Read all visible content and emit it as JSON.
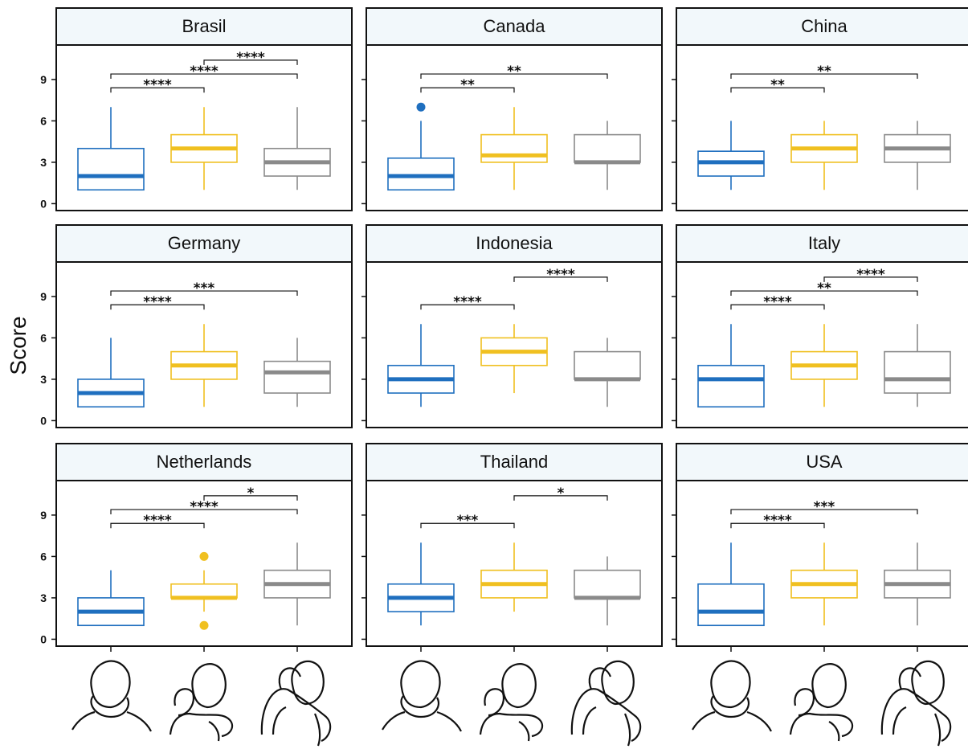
{
  "chart_data": {
    "type": "boxplot",
    "ylabel": "Score",
    "y_ticks": [
      "0",
      "3",
      "6",
      "9"
    ],
    "ylim": [
      -0.5,
      11.5
    ],
    "groups": [
      "alone",
      "hug-from-front",
      "hug-from-behind"
    ],
    "group_icons": [
      "person-alone-icon",
      "person-hugged-icon",
      "person-hugging-icon"
    ],
    "colors": [
      "#1f6fbf",
      "#f0c020",
      "#8a8a8a"
    ],
    "panels": [
      {
        "title": "Brasil",
        "boxes": [
          {
            "min": 1,
            "q1": 1,
            "median": 2,
            "q3": 4,
            "max": 7,
            "outliers": []
          },
          {
            "min": 1,
            "q1": 3,
            "median": 4,
            "q3": 5,
            "max": 7,
            "outliers": []
          },
          {
            "min": 1,
            "q1": 2,
            "median": 3,
            "q3": 4,
            "max": 7,
            "outliers": []
          }
        ],
        "sig": [
          {
            "from": 0,
            "to": 1,
            "y": 8.4,
            "label": "****"
          },
          {
            "from": 0,
            "to": 2,
            "y": 9.4,
            "label": "****"
          },
          {
            "from": 1,
            "to": 2,
            "y": 10.4,
            "label": "****"
          }
        ]
      },
      {
        "title": "Canada",
        "boxes": [
          {
            "min": 1,
            "q1": 1,
            "median": 2,
            "q3": 3.3,
            "max": 6,
            "outliers": [
              7
            ]
          },
          {
            "min": 1,
            "q1": 3,
            "median": 3.5,
            "q3": 5,
            "max": 7,
            "outliers": []
          },
          {
            "min": 1,
            "q1": 3,
            "median": 3,
            "q3": 5,
            "max": 6,
            "outliers": []
          }
        ],
        "sig": [
          {
            "from": 0,
            "to": 1,
            "y": 8.4,
            "label": "**"
          },
          {
            "from": 0,
            "to": 2,
            "y": 9.4,
            "label": "**"
          }
        ]
      },
      {
        "title": "China",
        "boxes": [
          {
            "min": 1,
            "q1": 2,
            "median": 3,
            "q3": 3.8,
            "max": 6,
            "outliers": []
          },
          {
            "min": 1,
            "q1": 3,
            "median": 4,
            "q3": 5,
            "max": 6,
            "outliers": []
          },
          {
            "min": 1,
            "q1": 3,
            "median": 4,
            "q3": 5,
            "max": 6,
            "outliers": []
          }
        ],
        "sig": [
          {
            "from": 0,
            "to": 1,
            "y": 8.4,
            "label": "**"
          },
          {
            "from": 0,
            "to": 2,
            "y": 9.4,
            "label": "**"
          }
        ]
      },
      {
        "title": "Germany",
        "boxes": [
          {
            "min": 1,
            "q1": 1,
            "median": 2,
            "q3": 3,
            "max": 6,
            "outliers": []
          },
          {
            "min": 1,
            "q1": 3,
            "median": 4,
            "q3": 5,
            "max": 7,
            "outliers": []
          },
          {
            "min": 1,
            "q1": 2,
            "median": 3.5,
            "q3": 4.3,
            "max": 6,
            "outliers": []
          }
        ],
        "sig": [
          {
            "from": 0,
            "to": 1,
            "y": 8.4,
            "label": "****"
          },
          {
            "from": 0,
            "to": 2,
            "y": 9.4,
            "label": "***"
          }
        ]
      },
      {
        "title": "Indonesia",
        "boxes": [
          {
            "min": 1,
            "q1": 2,
            "median": 3,
            "q3": 4,
            "max": 7,
            "outliers": []
          },
          {
            "min": 2,
            "q1": 4,
            "median": 5,
            "q3": 6,
            "max": 7,
            "outliers": []
          },
          {
            "min": 1,
            "q1": 3,
            "median": 3,
            "q3": 5,
            "max": 6,
            "outliers": []
          }
        ],
        "sig": [
          {
            "from": 0,
            "to": 1,
            "y": 8.4,
            "label": "****"
          },
          {
            "from": 1,
            "to": 2,
            "y": 10.4,
            "label": "****"
          }
        ]
      },
      {
        "title": "Italy",
        "boxes": [
          {
            "min": 1,
            "q1": 1,
            "median": 3,
            "q3": 4,
            "max": 7,
            "outliers": []
          },
          {
            "min": 1,
            "q1": 3,
            "median": 4,
            "q3": 5,
            "max": 7,
            "outliers": []
          },
          {
            "min": 1,
            "q1": 2,
            "median": 3,
            "q3": 5,
            "max": 7,
            "outliers": []
          }
        ],
        "sig": [
          {
            "from": 0,
            "to": 1,
            "y": 8.4,
            "label": "****"
          },
          {
            "from": 0,
            "to": 2,
            "y": 9.4,
            "label": "**"
          },
          {
            "from": 1,
            "to": 2,
            "y": 10.4,
            "label": "****"
          }
        ]
      },
      {
        "title": "Netherlands",
        "boxes": [
          {
            "min": 1,
            "q1": 1,
            "median": 2,
            "q3": 3,
            "max": 5,
            "outliers": []
          },
          {
            "min": 2,
            "q1": 3,
            "median": 3,
            "q3": 4,
            "max": 5,
            "outliers": [
              6,
              1
            ]
          },
          {
            "min": 1,
            "q1": 3,
            "median": 4,
            "q3": 5,
            "max": 7,
            "outliers": []
          }
        ],
        "sig": [
          {
            "from": 0,
            "to": 1,
            "y": 8.4,
            "label": "****"
          },
          {
            "from": 0,
            "to": 2,
            "y": 9.4,
            "label": "****"
          },
          {
            "from": 1,
            "to": 2,
            "y": 10.4,
            "label": "*"
          }
        ]
      },
      {
        "title": "Thailand",
        "boxes": [
          {
            "min": 1,
            "q1": 2,
            "median": 3,
            "q3": 4,
            "max": 7,
            "outliers": []
          },
          {
            "min": 2,
            "q1": 3,
            "median": 4,
            "q3": 5,
            "max": 7,
            "outliers": []
          },
          {
            "min": 1,
            "q1": 3,
            "median": 3,
            "q3": 5,
            "max": 6,
            "outliers": []
          }
        ],
        "sig": [
          {
            "from": 0,
            "to": 1,
            "y": 8.4,
            "label": "***"
          },
          {
            "from": 1,
            "to": 2,
            "y": 10.4,
            "label": "*"
          }
        ]
      },
      {
        "title": "USA",
        "boxes": [
          {
            "min": 1,
            "q1": 1,
            "median": 2,
            "q3": 4,
            "max": 7,
            "outliers": []
          },
          {
            "min": 1,
            "q1": 3,
            "median": 4,
            "q3": 5,
            "max": 7,
            "outliers": []
          },
          {
            "min": 1,
            "q1": 3,
            "median": 4,
            "q3": 5,
            "max": 7,
            "outliers": []
          }
        ],
        "sig": [
          {
            "from": 0,
            "to": 1,
            "y": 8.4,
            "label": "****"
          },
          {
            "from": 0,
            "to": 2,
            "y": 9.4,
            "label": "***"
          }
        ]
      }
    ]
  }
}
